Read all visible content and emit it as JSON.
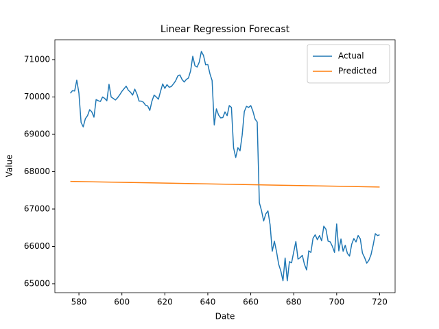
{
  "chart_data": {
    "type": "line",
    "title": "Linear Regression Forecast",
    "x_label": "Date",
    "y_label": "Value",
    "xlim": [
      568.8,
      727.2
    ],
    "ylim": [
      64761,
      71532
    ],
    "xticks": [
      580,
      600,
      620,
      640,
      660,
      680,
      700,
      720
    ],
    "yticks": [
      65000,
      66000,
      67000,
      68000,
      69000,
      70000,
      71000
    ],
    "legend": "upper right",
    "series": [
      {
        "name": "Actual",
        "color": "#1f77b4",
        "x": [
          576,
          577,
          578,
          579,
          580,
          581,
          582,
          583,
          584,
          585,
          586,
          587,
          588,
          589,
          590,
          591,
          592,
          593,
          594,
          595,
          596,
          597,
          598,
          599,
          600,
          601,
          602,
          603,
          604,
          605,
          606,
          607,
          608,
          609,
          610,
          611,
          612,
          613,
          614,
          615,
          616,
          617,
          618,
          619,
          620,
          621,
          622,
          623,
          624,
          625,
          626,
          627,
          628,
          629,
          630,
          631,
          632,
          633,
          634,
          635,
          636,
          637,
          638,
          639,
          640,
          641,
          642,
          643,
          644,
          645,
          646,
          647,
          648,
          649,
          650,
          651,
          652,
          653,
          654,
          655,
          656,
          657,
          658,
          659,
          660,
          661,
          662,
          663,
          664,
          665,
          666,
          667,
          668,
          669,
          670,
          671,
          672,
          673,
          674,
          675,
          676,
          677,
          678,
          679,
          680,
          681,
          682,
          683,
          684,
          685,
          686,
          687,
          688,
          689,
          690,
          691,
          692,
          693,
          694,
          695,
          696,
          697,
          698,
          699,
          700,
          701,
          702,
          703,
          704,
          705,
          706,
          707,
          708,
          709,
          710,
          711,
          712,
          713,
          714,
          715,
          716,
          717,
          718,
          719,
          720
        ],
        "values": [
          70100,
          70170,
          70160,
          70450,
          70100,
          69320,
          69200,
          69420,
          69500,
          69660,
          69600,
          69460,
          69930,
          69900,
          69880,
          70000,
          69960,
          69900,
          70340,
          70000,
          69960,
          69920,
          69980,
          70060,
          70150,
          70220,
          70290,
          70180,
          70130,
          70050,
          70210,
          70080,
          69890,
          69890,
          69860,
          69780,
          69760,
          69640,
          69890,
          70050,
          70000,
          69940,
          70150,
          70350,
          70230,
          70330,
          70260,
          70280,
          70350,
          70430,
          70560,
          70590,
          70470,
          70400,
          70470,
          70510,
          70700,
          71090,
          70840,
          70800,
          70930,
          71220,
          71110,
          70860,
          70870,
          70620,
          70440,
          69250,
          69680,
          69520,
          69440,
          69450,
          69600,
          69500,
          69770,
          69720,
          68640,
          68380,
          68640,
          68560,
          68980,
          69610,
          69750,
          69720,
          69770,
          69620,
          69410,
          69330,
          67170,
          66960,
          66680,
          66870,
          66950,
          66580,
          65870,
          66140,
          65860,
          65520,
          65340,
          65080,
          65690,
          65080,
          65590,
          65560,
          65850,
          66130,
          65660,
          65700,
          65760,
          65520,
          65370,
          65880,
          65840,
          66220,
          66310,
          66180,
          66290,
          66150,
          66540,
          66460,
          66140,
          66120,
          66000,
          65840,
          66600,
          65880,
          66200,
          65870,
          66030,
          65810,
          65740,
          66060,
          66210,
          66120,
          66290,
          66200,
          65820,
          65700,
          65550,
          65630,
          65780,
          66040,
          66340,
          66290,
          66310
        ]
      },
      {
        "name": "Predicted",
        "color": "#ff7f0e",
        "x": [
          576,
          720
        ],
        "values": [
          67740,
          67590
        ]
      }
    ]
  }
}
